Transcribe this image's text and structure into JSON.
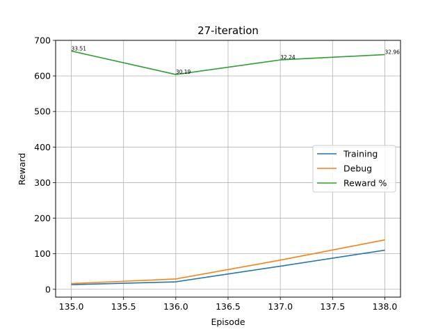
{
  "chart_data": {
    "type": "line",
    "title": "27-iteration",
    "xlabel": "Episode",
    "ylabel": "Reward",
    "xlim": [
      134.85,
      138.15
    ],
    "ylim": [
      -22,
      700
    ],
    "x": [
      135.0,
      136.0,
      137.0,
      138.0
    ],
    "x_ticks": [
      "135.0",
      "135.5",
      "136.0",
      "136.5",
      "137.0",
      "137.5",
      "138.0"
    ],
    "y_ticks": [
      "0",
      "100",
      "200",
      "300",
      "400",
      "500",
      "600",
      "700"
    ],
    "grid": true,
    "legend_position": "center-right",
    "series": [
      {
        "name": "Training",
        "color": "#1f77b4",
        "values": [
          13,
          21,
          65,
          110
        ]
      },
      {
        "name": "Debug",
        "color": "#ff7f0e",
        "values": [
          16,
          29,
          82,
          139
        ]
      },
      {
        "name": "Reward %",
        "color": "#2ca02c",
        "values": [
          670,
          604,
          645,
          660
        ],
        "labels": [
          "33.51",
          "30.19",
          "32.24",
          "32.96"
        ]
      }
    ]
  }
}
